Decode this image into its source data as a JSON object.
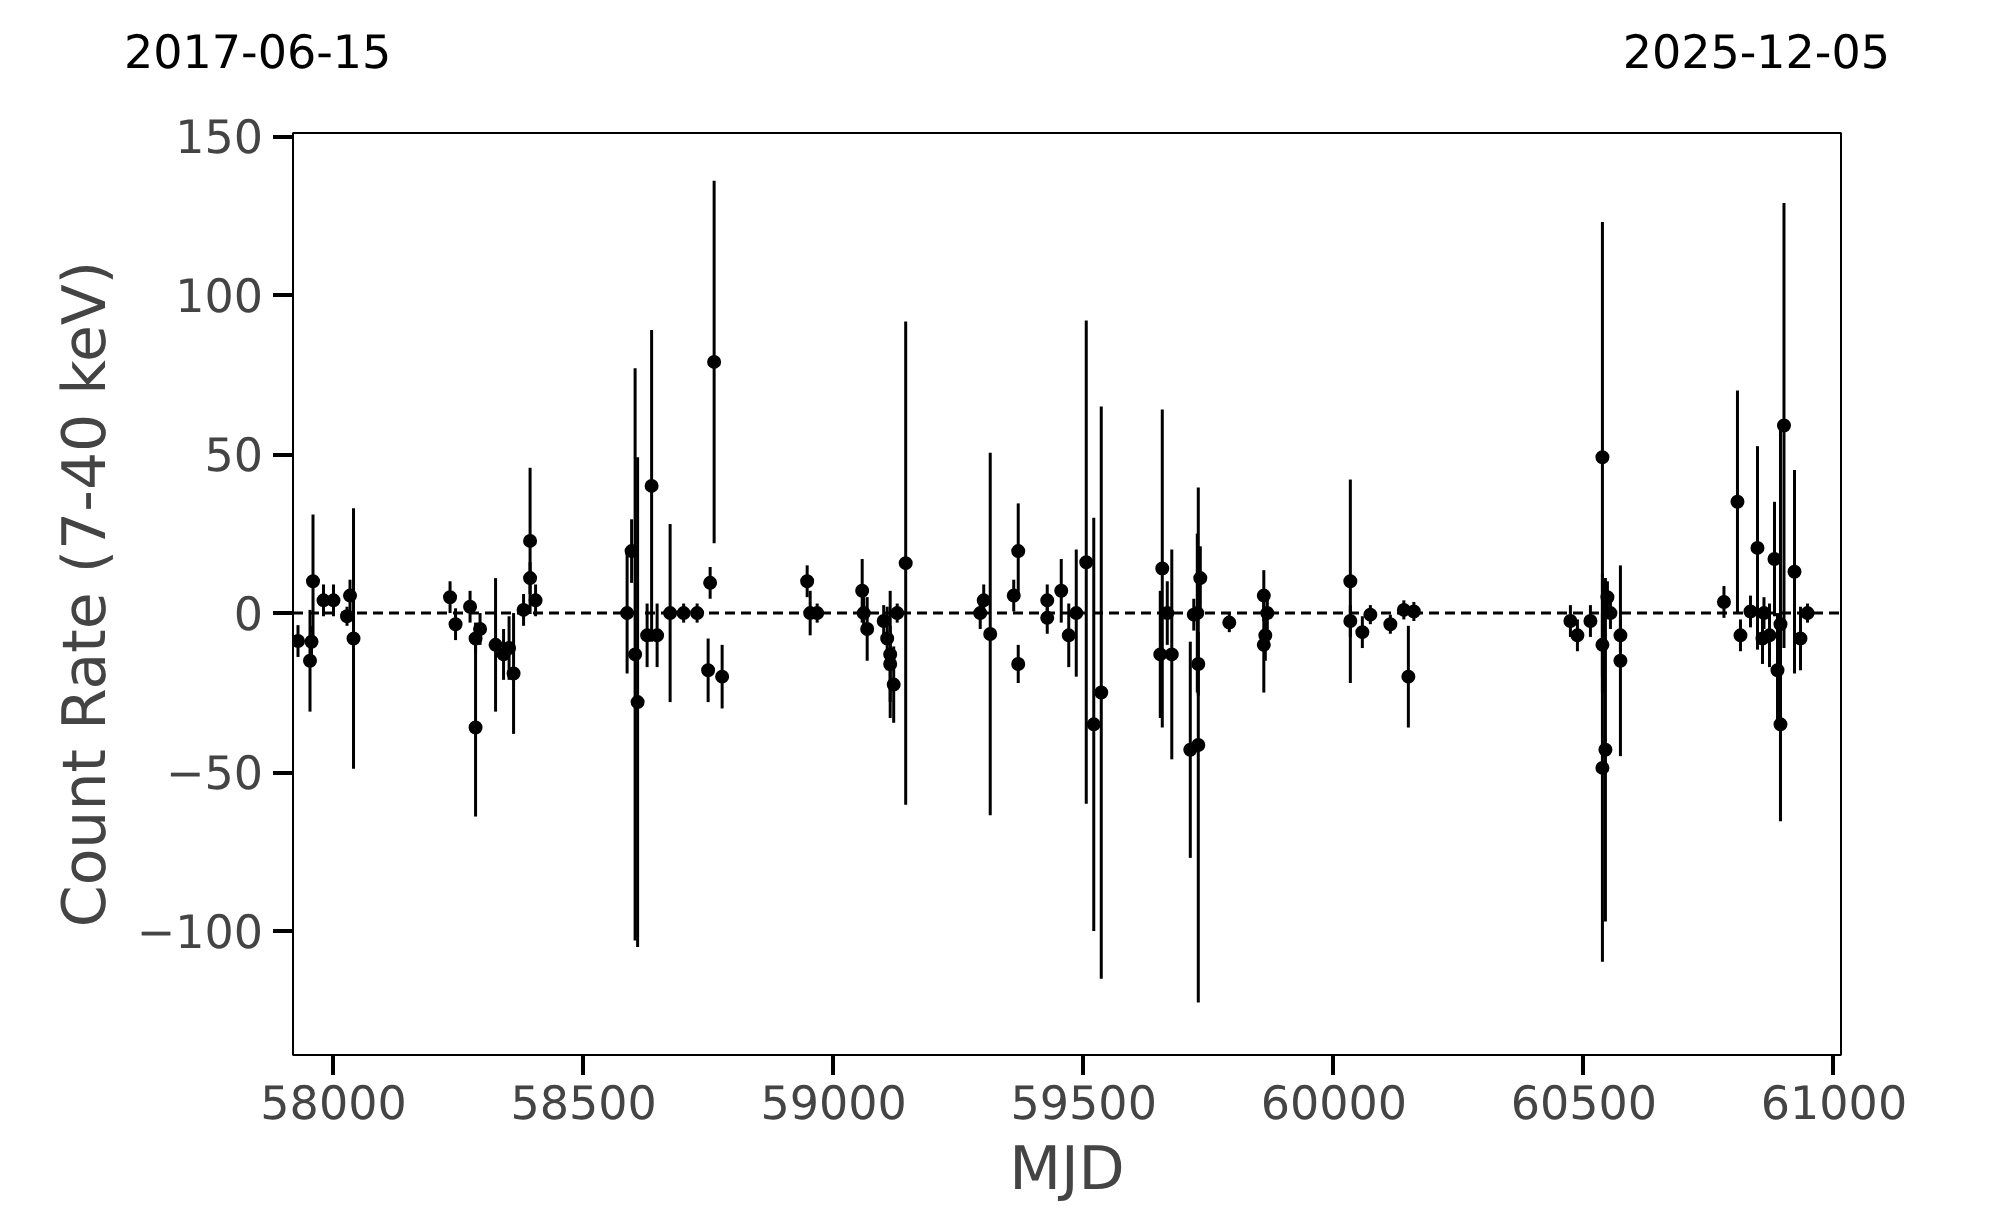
{
  "chart_data": {
    "type": "scatter",
    "xlabel": "MJD",
    "ylabel": "Count Rate (7-40 keV)",
    "annotations": [
      "2017-06-15",
      "2025-12-05"
    ],
    "x": [
      57929,
      57953,
      57959,
      57956,
      57980,
      58000,
      58027,
      58033,
      58040,
      58233,
      58244,
      58273,
      58284,
      58284,
      58293,
      58324,
      58340,
      58351,
      58360,
      58380,
      58393,
      58393,
      58404,
      58587,
      58596,
      58603,
      58608,
      58627,
      58636,
      58647,
      58673,
      58700,
      58727,
      58749,
      58753,
      58761,
      58777,
      58947,
      58953,
      58967,
      59057,
      59060,
      59067,
      59100,
      59107,
      59113,
      59120,
      59113,
      59127,
      59144,
      59293,
      59300,
      59313,
      59360,
      59369,
      59369,
      59427,
      59427,
      59455,
      59470,
      59485,
      59505,
      59535,
      59520,
      59657,
      59653,
      59667,
      59676,
      59713,
      59729,
      59733,
      59729,
      59727,
      59720,
      59791,
      59860,
      59863,
      59860,
      59867,
      60033,
      60033,
      60057,
      60073,
      60113,
      60140,
      60149,
      60160,
      60473,
      60487,
      60513,
      60537,
      60537,
      60543,
      60537,
      60547,
      60573,
      60573,
      60553,
      60780,
      60807,
      60813,
      60847,
      60857,
      60871,
      60881,
      60887,
      60893,
      60900,
      60893,
      60921,
      60933,
      60947,
      60833,
      60860
    ],
    "values": [
      -8.8,
      -15,
      10,
      -9,
      4,
      4,
      -1,
      5.5,
      -8,
      5,
      -3.5,
      2,
      -8,
      -36,
      -5,
      -10,
      -13,
      -11,
      -19,
      1,
      22.7,
      11,
      4,
      0,
      19.5,
      -13,
      -28,
      -7,
      40,
      -7,
      0,
      0,
      0,
      -18,
      9.5,
      79,
      -20,
      10,
      0,
      0,
      7,
      0,
      -5,
      -2.5,
      -8,
      -16,
      -22.5,
      -13,
      0,
      15.7,
      0,
      4,
      -6.6,
      5.5,
      19.5,
      -16,
      4,
      -1.5,
      7,
      -7,
      0,
      16,
      -25,
      -35,
      14,
      -13,
      0,
      -13,
      -43,
      -41.5,
      11,
      -16,
      0,
      -0.5,
      -3,
      5.5,
      -7,
      -10,
      0,
      10,
      -2.5,
      -6,
      -0.5,
      -3.5,
      1,
      -20,
      0.5,
      -2.5,
      -7,
      -2.5,
      49,
      -48.7,
      -43,
      -10,
      5,
      -15,
      -7,
      0,
      3.5,
      35,
      -7,
      20.5,
      -8,
      -7,
      17,
      -18,
      -35,
      59,
      -3.5,
      13,
      -8,
      0,
      0.5,
      0
    ],
    "errors": [
      5,
      16,
      21,
      5,
      5,
      5,
      3,
      5,
      41,
      5,
      5,
      5,
      5,
      28,
      5,
      21,
      8,
      10,
      19,
      5,
      23,
      5,
      5,
      19,
      10,
      90,
      77,
      10,
      49,
      10,
      28,
      3,
      3,
      10,
      5,
      57,
      10,
      5,
      7,
      3,
      10,
      5,
      10,
      5,
      10,
      12,
      12,
      20,
      3,
      76,
      5,
      5,
      57,
      5,
      15,
      6,
      5,
      5,
      10,
      10,
      20,
      76,
      90,
      65,
      50,
      20,
      10,
      33,
      34,
      81,
      10,
      10,
      25,
      5,
      3,
      8,
      8,
      15,
      5,
      32,
      5,
      5,
      3,
      3,
      3,
      16,
      3,
      5,
      5,
      5,
      74,
      61,
      54,
      10,
      5,
      30,
      5,
      5,
      5,
      35,
      5,
      32,
      8,
      10,
      18,
      18,
      30,
      70,
      62,
      32,
      10,
      3,
      5,
      5
    ],
    "color": "#000000",
    "marker": "circle",
    "xlim": [
      57919,
      61014
    ],
    "ylim": [
      -139,
      151
    ],
    "xticks": [
      58000,
      58500,
      59000,
      59500,
      60000,
      60500,
      61000
    ],
    "yticks": [
      {
        "value": -100,
        "label": "−100"
      },
      {
        "value": -50,
        "label": "−50"
      },
      0,
      50,
      100,
      150
    ],
    "ref_lines": [
      {
        "axis": "y",
        "value": 0,
        "label": null,
        "color": "#000000",
        "line_style": "dashed"
      }
    ],
    "grid": false
  }
}
